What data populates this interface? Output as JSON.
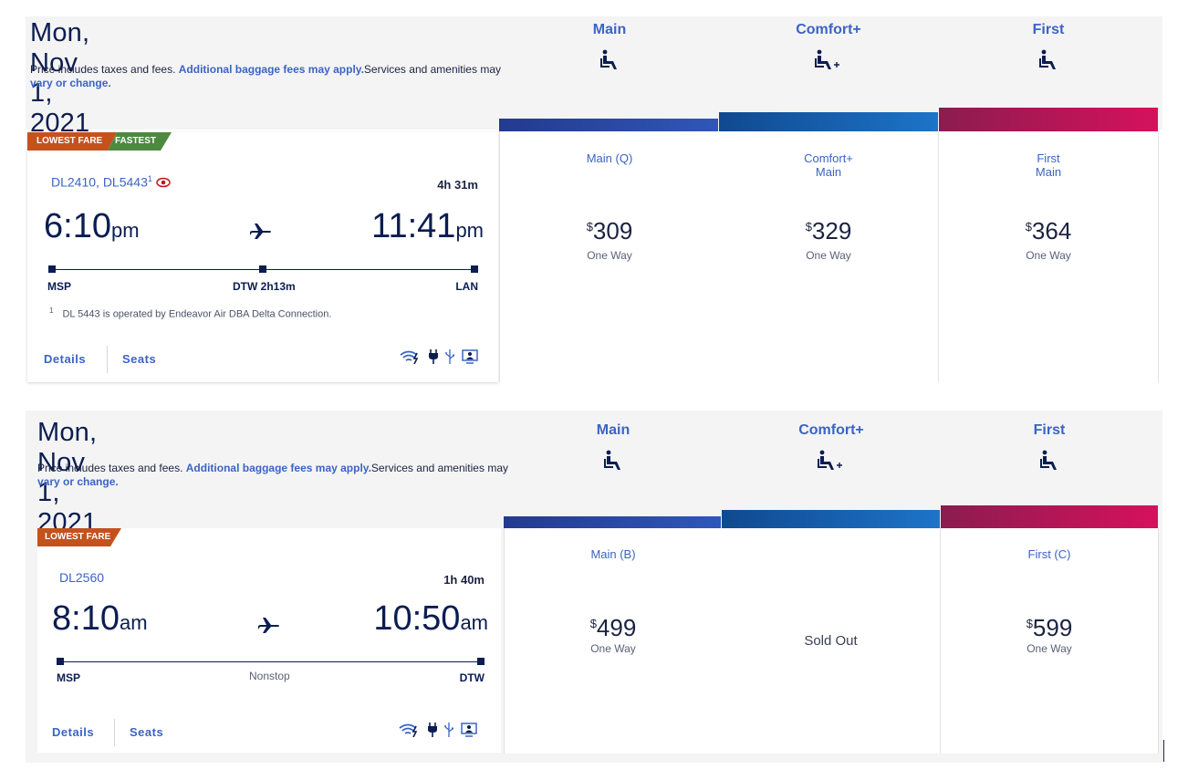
{
  "results": [
    {
      "date": "Mon, Nov 1, 2021",
      "note": {
        "pre": "Price includes taxes and fees. ",
        "link1": "Additional baggage fees may apply.",
        "mid": "Services and amenities may ",
        "link2": "vary or change."
      },
      "cabins": [
        "Main",
        "Comfort+",
        "First"
      ],
      "badges": [
        "LOWEST FARE",
        "FASTEST"
      ],
      "flight_numbers": "DL2410, DL5443",
      "footnote_marker": "1",
      "duration": "4h 31m",
      "depart": {
        "time": "6:10",
        "suffix": "pm"
      },
      "arrive": {
        "time": "11:41",
        "suffix": "pm"
      },
      "origin": "MSP",
      "stop": "DTW 2h13m",
      "destination": "LAN",
      "footnote": {
        "num": "1",
        "text": "DL 5443 is operated by Endeavor Air DBA Delta Connection."
      },
      "details_label": "Details",
      "seats_label": "Seats",
      "fares": [
        {
          "name": "Main (Q)",
          "name2": "",
          "currency": "$",
          "amount": "309",
          "type": "One Way"
        },
        {
          "name": "Comfort+",
          "name2": "Main",
          "currency": "$",
          "amount": "329",
          "type": "One Way"
        },
        {
          "name": "First",
          "name2": "Main",
          "currency": "$",
          "amount": "364",
          "type": "One Way"
        }
      ]
    },
    {
      "date": "Mon, Nov 1, 2021",
      "note": {
        "pre": "Price includes taxes and fees. ",
        "link1": "Additional baggage fees may apply.",
        "mid": "Services and amenities may ",
        "link2": "vary or change."
      },
      "cabins": [
        "Main",
        "Comfort+",
        "First"
      ],
      "badges": [
        "LOWEST FARE"
      ],
      "flight_numbers": "DL2560",
      "duration": "1h 40m",
      "depart": {
        "time": "8:10",
        "suffix": "am"
      },
      "arrive": {
        "time": "10:50",
        "suffix": "am"
      },
      "origin": "MSP",
      "stop": "Nonstop",
      "destination": "DTW",
      "details_label": "Details",
      "seats_label": "Seats",
      "fares": [
        {
          "name": "Main (B)",
          "currency": "$",
          "amount": "499",
          "type": "One Way"
        },
        {
          "sold_out": "Sold Out"
        },
        {
          "name": "First (C)",
          "currency": "$",
          "amount": "599",
          "type": "One Way"
        }
      ]
    }
  ],
  "colors": {
    "badge_lowest": "#c4521c",
    "badge_fastest": "#4d8a3f",
    "main_bar": "#2c4ba3",
    "comfort_bar": "#1565b8",
    "first_bar": "#b01650",
    "link": "#3b64c4",
    "navy": "#0b1d51"
  },
  "icons": [
    "seat-icon",
    "seat-plus-icon",
    "airplane-icon",
    "wifi-icon",
    "power-icon",
    "usb-icon",
    "entertainment-icon",
    "seat-map-eye-icon"
  ]
}
